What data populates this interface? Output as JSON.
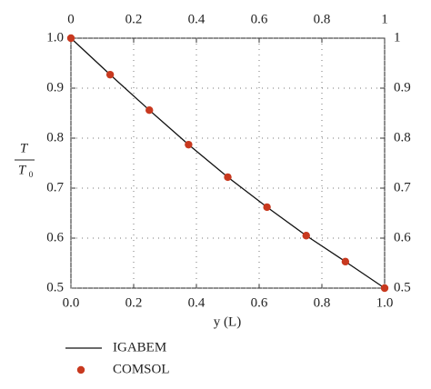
{
  "chart_data": {
    "type": "line",
    "x_label": "y (L)",
    "y_label_numerator": "T",
    "y_label_denominator": "T",
    "y_label_subscript": "0",
    "x": [
      0,
      0.125,
      0.25,
      0.375,
      0.5,
      0.625,
      0.75,
      0.875,
      1.0
    ],
    "series": [
      {
        "name": "IGABEM",
        "style": "line",
        "color": "#111111",
        "values": [
          1.0,
          0.927,
          0.856,
          0.787,
          0.722,
          0.662,
          0.605,
          0.553,
          0.5
        ]
      },
      {
        "name": "COMSOL",
        "style": "scatter",
        "color": "#c8391f",
        "values": [
          1.0,
          0.927,
          0.856,
          0.787,
          0.722,
          0.662,
          0.605,
          0.553,
          0.5
        ]
      }
    ],
    "xlim": [
      0,
      1
    ],
    "xticks": [
      {
        "value": 0,
        "label": "0.0"
      },
      0.2,
      0.4,
      0.6,
      0.8,
      {
        "value": 1,
        "label": "1.0"
      }
    ],
    "x2lim": [
      0,
      1
    ],
    "x2ticks": [
      0,
      0.2,
      0.4,
      0.6,
      0.8,
      1
    ],
    "ylim": [
      0.5,
      1.0
    ],
    "yticks": [
      0.5,
      0.6,
      0.7,
      0.8,
      0.9,
      {
        "value": 1,
        "label": "1.0"
      }
    ],
    "y2lim": [
      0.5,
      1.0
    ],
    "y2ticks": [
      0.5,
      0.6,
      0.7,
      0.8,
      0.9,
      1
    ],
    "grid": true
  }
}
